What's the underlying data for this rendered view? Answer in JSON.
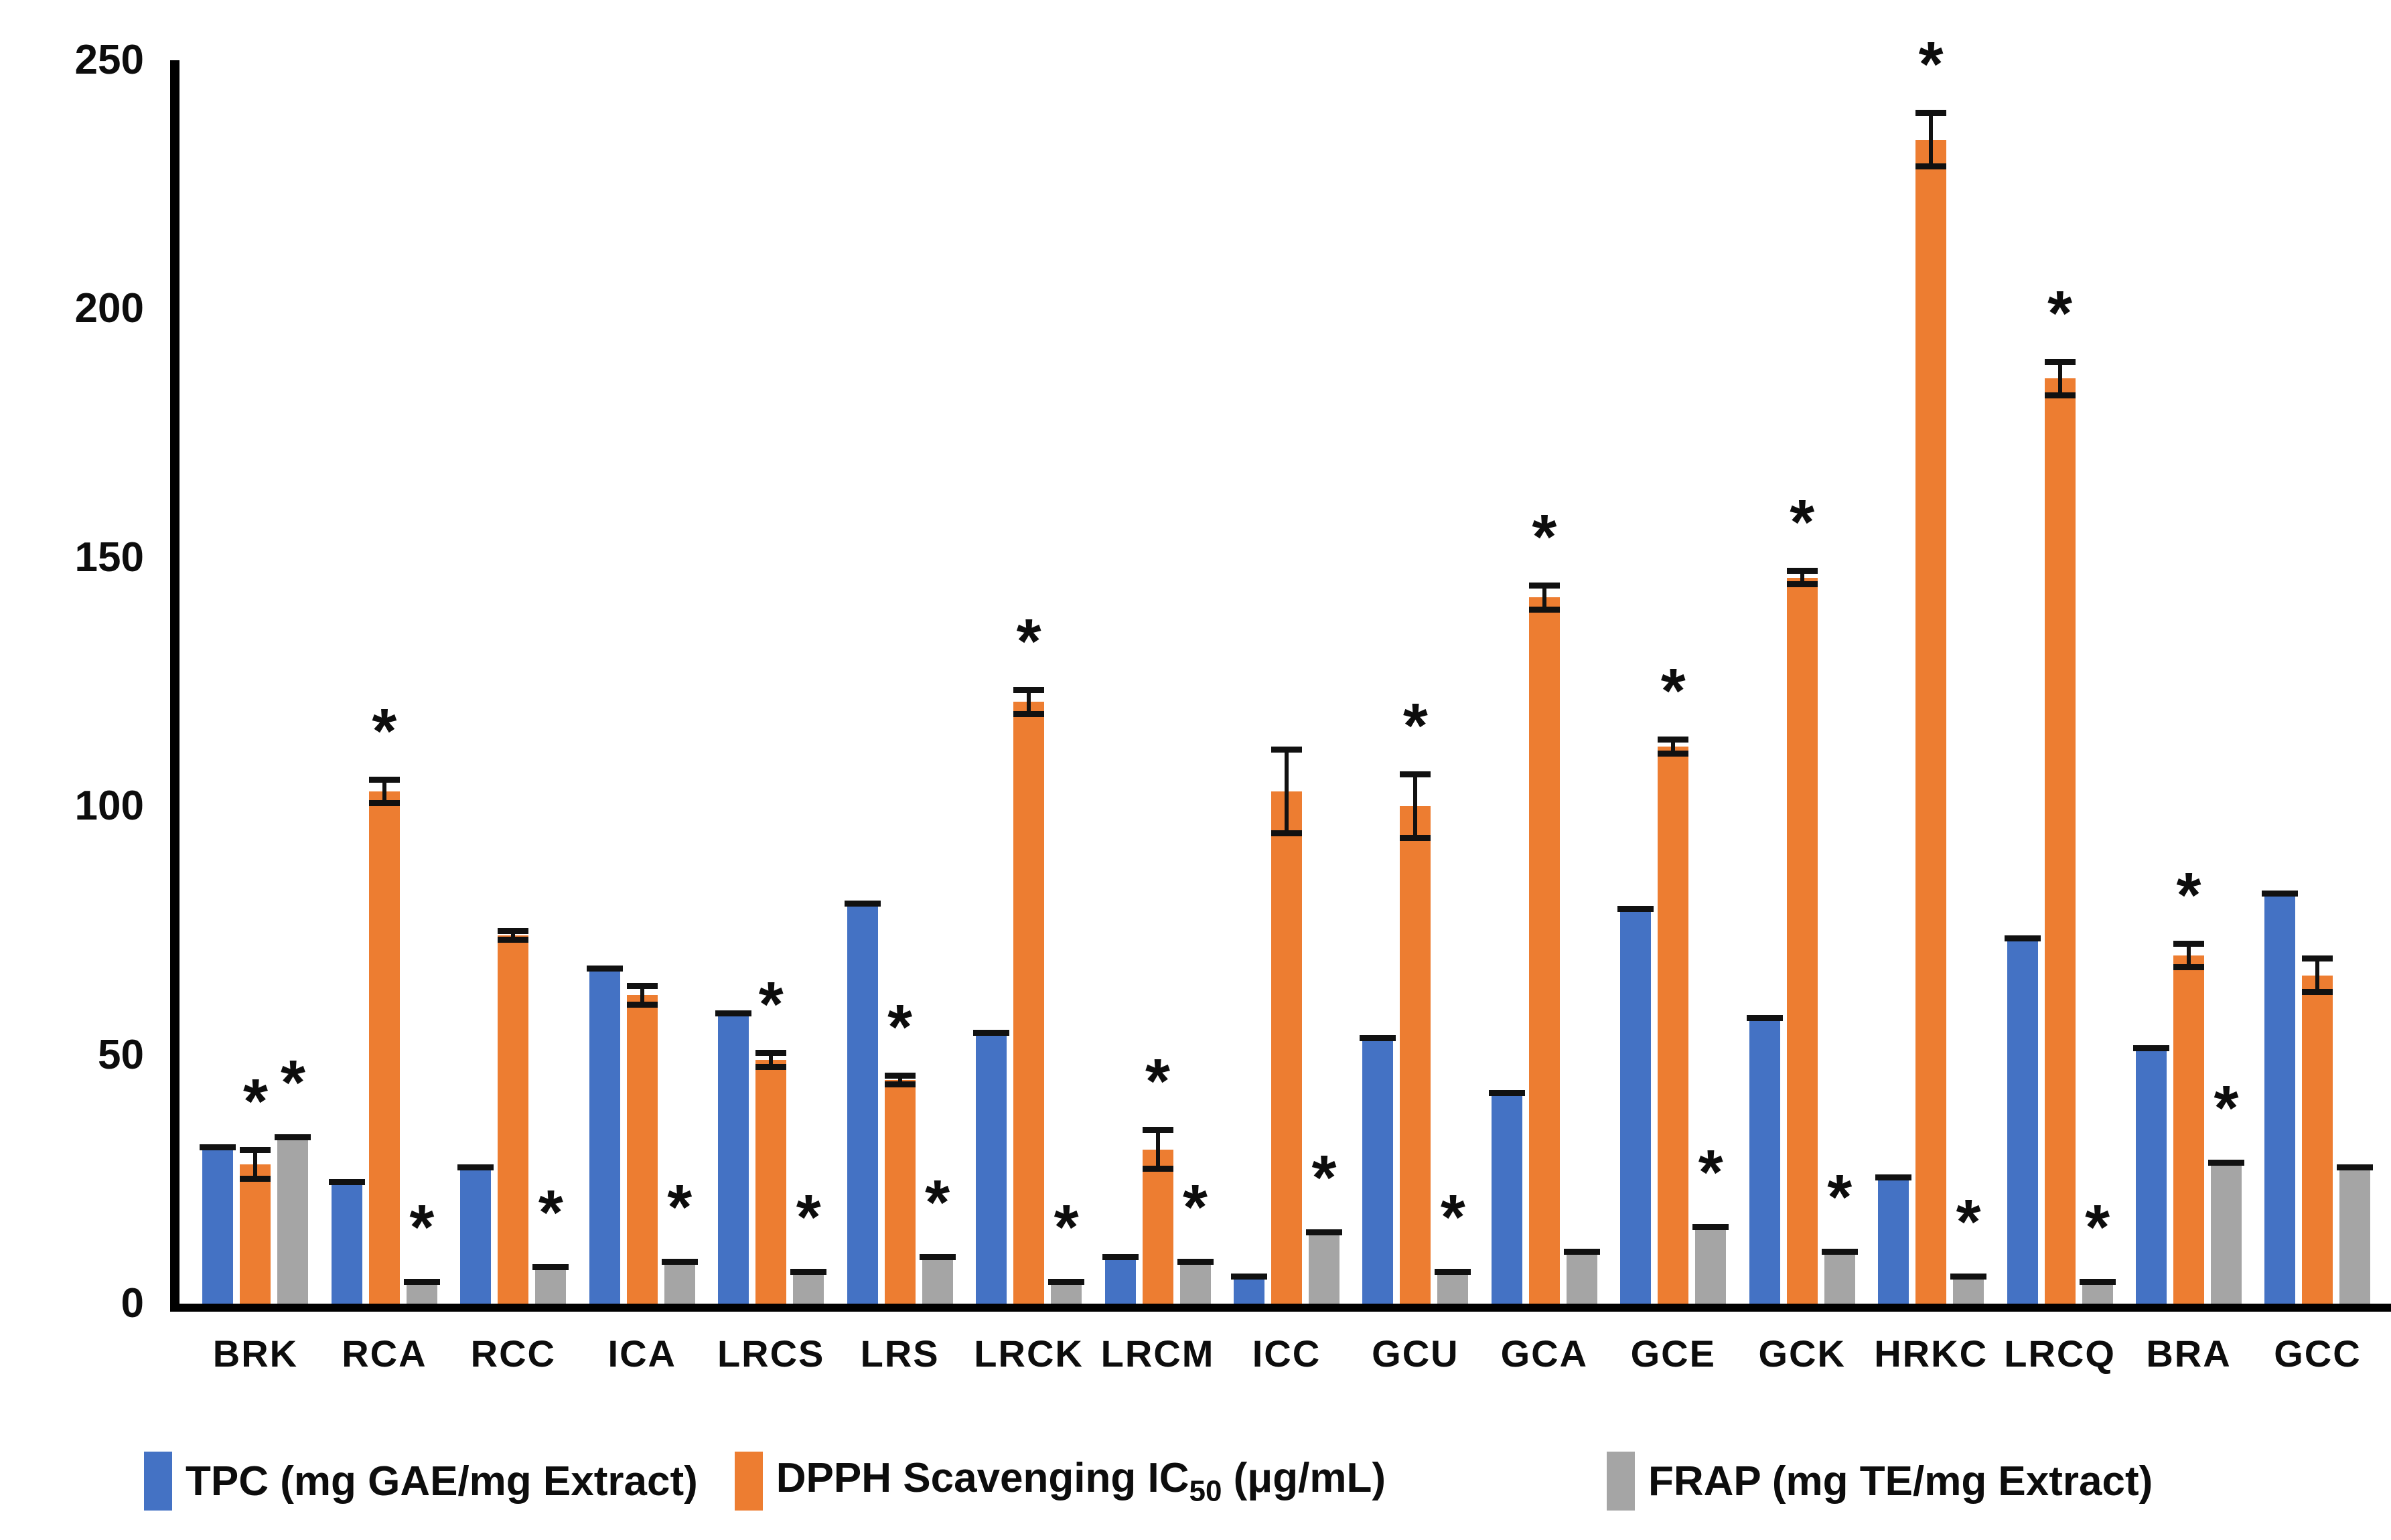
{
  "chart_data": {
    "type": "bar",
    "title": "",
    "xlabel": "",
    "ylabel": "",
    "ylim": [
      0,
      250
    ],
    "yticks": [
      0,
      50,
      100,
      150,
      200,
      250
    ],
    "grid": false,
    "legend_position": "bottom",
    "significance_marker": "*",
    "categories": [
      "BRK",
      "RCA",
      "RCC",
      "ICA",
      "LRCS",
      "LRS",
      "LRCK",
      "LRCM",
      "ICC",
      "GCU",
      "GCA",
      "GCE",
      "GCK",
      "HRKC",
      "LRCQ",
      "BRA",
      "GCC"
    ],
    "series": [
      {
        "name": "TPC",
        "color": "#4472C4",
        "values": [
          32,
          25,
          28,
          68,
          59,
          81,
          55,
          10,
          6,
          54,
          43,
          80,
          58,
          26,
          74,
          52,
          83
        ],
        "errors": [
          0,
          0,
          0,
          0,
          0,
          0,
          0,
          0,
          0,
          0,
          0,
          0,
          0,
          0,
          0,
          0,
          0
        ],
        "significant": [
          0,
          0,
          0,
          0,
          0,
          0,
          0,
          0,
          0,
          0,
          0,
          0,
          0,
          0,
          0,
          0,
          0
        ]
      },
      {
        "name": "DPPH",
        "color": "#ED7D31",
        "values": [
          28,
          103,
          74,
          62,
          49,
          45,
          121,
          31,
          103,
          100,
          142,
          112,
          146,
          234,
          186,
          70,
          66
        ],
        "errors": [
          3.5,
          3,
          1.5,
          2.5,
          2,
          1.5,
          3,
          4.5,
          9,
          7,
          3,
          2,
          2,
          6,
          4,
          3,
          4
        ],
        "significant": [
          1,
          1,
          0,
          0,
          1,
          1,
          1,
          1,
          0,
          1,
          1,
          1,
          1,
          1,
          1,
          1,
          0
        ]
      },
      {
        "name": "FRAP",
        "color": "#A5A5A5",
        "values": [
          34,
          5,
          8,
          9,
          7,
          10,
          5,
          9,
          15,
          7,
          11,
          16,
          11,
          6,
          5,
          29,
          28
        ],
        "errors": [
          0,
          0,
          0,
          0,
          0,
          0,
          0,
          0,
          0,
          0,
          0,
          0,
          0,
          0,
          0,
          0,
          0
        ],
        "significant": [
          1,
          1,
          1,
          1,
          1,
          1,
          1,
          1,
          1,
          1,
          0,
          1,
          1,
          1,
          1,
          1,
          0
        ]
      }
    ],
    "legend": {
      "items": [
        {
          "series": "TPC",
          "text": "TPC (mg GAE/mg Extract)"
        },
        {
          "series": "DPPH",
          "prefix": "DPPH Scavenging IC",
          "sub": "50",
          "suffix": " (μg/mL)"
        },
        {
          "series": "FRAP",
          "text": "FRAP (mg TE/mg Extract)"
        }
      ]
    }
  },
  "axis": {
    "y_tick_labels": [
      "0",
      "50",
      "100",
      "150",
      "200",
      "250"
    ]
  }
}
